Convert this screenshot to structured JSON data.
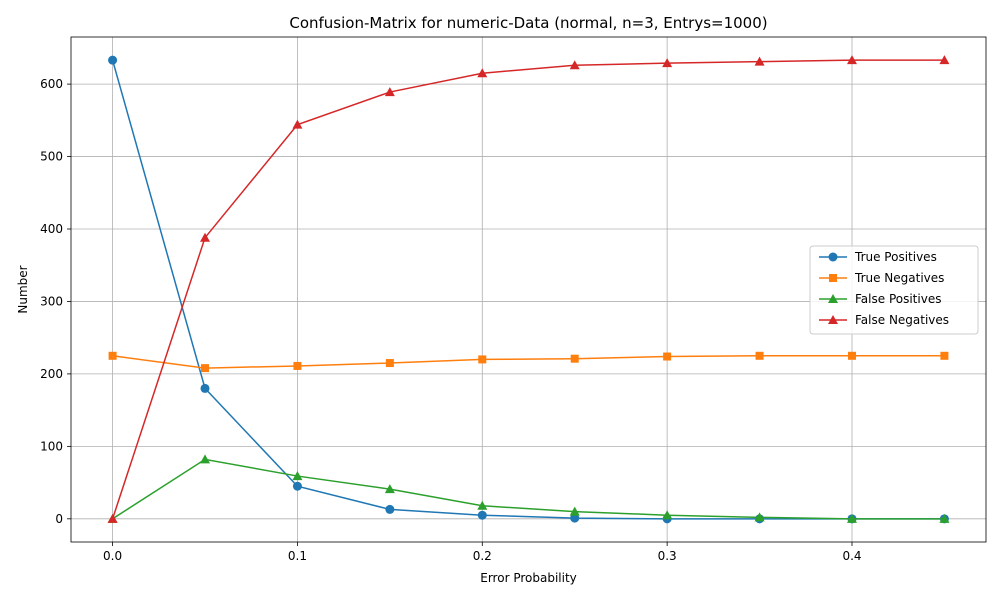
{
  "chart_data": {
    "type": "line",
    "title": "Confusion-Matrix for numeric-Data (normal, n=3, Entrys=1000)",
    "xlabel": "Error Probability",
    "ylabel": "Number",
    "x": [
      0.0,
      0.05,
      0.1,
      0.15,
      0.2,
      0.25,
      0.3,
      0.35,
      0.4,
      0.45
    ],
    "xlim": [
      -0.0225,
      0.4725
    ],
    "ylim": [
      -32,
      665
    ],
    "xticks": [
      0.0,
      0.1,
      0.2,
      0.3,
      0.4
    ],
    "xtick_labels": [
      "0.0",
      "0.1",
      "0.2",
      "0.3",
      "0.4"
    ],
    "yticks": [
      0,
      100,
      200,
      300,
      400,
      500,
      600
    ],
    "ytick_labels": [
      "0",
      "100",
      "200",
      "300",
      "400",
      "500",
      "600"
    ],
    "grid": true,
    "legend_position": "center-right",
    "series": [
      {
        "name": "True Positives",
        "color": "#1f77b4",
        "marker": "circle",
        "values": [
          633,
          180,
          45,
          13,
          5,
          1,
          0,
          0,
          0,
          0
        ]
      },
      {
        "name": "True Negatives",
        "color": "#ff7f0e",
        "marker": "square",
        "values": [
          225,
          208,
          211,
          215,
          220,
          221,
          224,
          225,
          225,
          225
        ]
      },
      {
        "name": "False Positives",
        "color": "#2ca02c",
        "marker": "triangle",
        "values": [
          0,
          82,
          59,
          41,
          18,
          10,
          5,
          2,
          0,
          0
        ]
      },
      {
        "name": "False Negatives",
        "color": "#d62728",
        "marker": "triangle",
        "values": [
          0,
          388,
          544,
          589,
          615,
          626,
          629,
          631,
          633,
          633
        ]
      }
    ]
  }
}
